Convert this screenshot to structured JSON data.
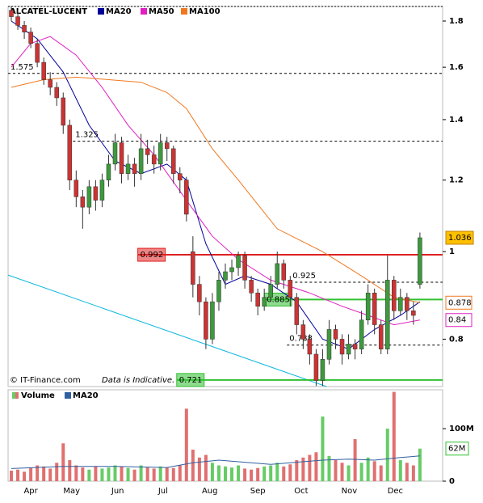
{
  "chart_data": [
    {
      "type": "candlestick",
      "title": "ALCATEL-LUCENT",
      "source": "© IT-Finance.com",
      "note": "Data is Indicative.",
      "log_scale": true,
      "xlim": [
        -0.5,
        66.5
      ],
      "xticks": [
        {
          "value": 3,
          "label": "Apr"
        },
        {
          "value": 9.3,
          "label": "May"
        },
        {
          "value": 16.4,
          "label": "Jun"
        },
        {
          "value": 23.4,
          "label": "Jul"
        },
        {
          "value": 30.6,
          "label": "Aug"
        },
        {
          "value": 38,
          "label": "Sep"
        },
        {
          "value": 44.7,
          "label": "Oct"
        },
        {
          "value": 52.1,
          "label": "Nov"
        },
        {
          "value": 59.2,
          "label": "Dec"
        }
      ],
      "ylim": [
        0.709,
        1.868
      ],
      "yticks": [
        0.8,
        1,
        1.2,
        1.4,
        1.6,
        1.8
      ],
      "up_color": "#3c9a3c",
      "down_color": "#cc3333",
      "last_price_color": "#ffc000",
      "open": [
        1.85,
        1.82,
        1.78,
        1.75,
        1.7,
        1.62,
        1.55,
        1.52,
        1.48,
        1.38,
        1.2,
        1.15,
        1.12,
        1.18,
        1.14,
        1.2,
        1.25,
        1.32,
        1.22,
        1.25,
        1.22,
        1.3,
        1.28,
        1.25,
        1.32,
        1.3,
        1.22,
        1.2,
        1.0,
        0.92,
        0.88,
        0.8,
        0.88,
        0.93,
        0.95,
        0.96,
        0.99,
        0.93,
        0.9,
        0.87,
        0.89,
        0.92,
        0.97,
        0.93,
        0.89,
        0.83,
        0.8,
        0.77,
        0.72,
        0.76,
        0.82,
        0.8,
        0.77,
        0.79,
        0.78,
        0.84,
        0.9,
        0.83,
        0.78,
        0.93,
        0.86,
        0.89,
        0.86,
        0.92
      ],
      "high": [
        1.87,
        1.85,
        1.8,
        1.77,
        1.72,
        1.64,
        1.58,
        1.54,
        1.5,
        1.4,
        1.23,
        1.17,
        1.2,
        1.2,
        1.22,
        1.28,
        1.35,
        1.34,
        1.28,
        1.27,
        1.35,
        1.33,
        1.31,
        1.35,
        1.34,
        1.31,
        1.24,
        1.21,
        1.04,
        0.94,
        0.89,
        0.9,
        0.95,
        0.97,
        0.98,
        1.0,
        1.0,
        0.94,
        0.91,
        0.91,
        0.94,
        1.0,
        0.98,
        0.94,
        0.9,
        0.84,
        0.81,
        0.78,
        0.78,
        0.84,
        0.83,
        0.81,
        0.81,
        0.8,
        0.86,
        0.92,
        0.91,
        0.84,
        0.99,
        0.94,
        0.91,
        0.9,
        0.88,
        1.05
      ],
      "low": [
        1.8,
        1.76,
        1.72,
        1.68,
        1.6,
        1.53,
        1.49,
        1.45,
        1.35,
        1.17,
        1.12,
        1.06,
        1.1,
        1.11,
        1.12,
        1.18,
        1.23,
        1.19,
        1.2,
        1.18,
        1.2,
        1.25,
        1.22,
        1.23,
        1.26,
        1.19,
        1.16,
        1.08,
        0.89,
        0.85,
        0.78,
        0.79,
        0.86,
        0.91,
        0.93,
        0.94,
        0.91,
        0.88,
        0.85,
        0.86,
        0.88,
        0.91,
        0.91,
        0.87,
        0.81,
        0.78,
        0.75,
        0.71,
        0.71,
        0.75,
        0.78,
        0.75,
        0.76,
        0.76,
        0.77,
        0.83,
        0.81,
        0.77,
        0.77,
        0.84,
        0.85,
        0.84,
        0.83,
        0.91
      ],
      "close": [
        1.82,
        1.78,
        1.75,
        1.7,
        1.62,
        1.55,
        1.52,
        1.48,
        1.38,
        1.2,
        1.15,
        1.12,
        1.18,
        1.14,
        1.2,
        1.25,
        1.32,
        1.22,
        1.25,
        1.22,
        1.3,
        1.28,
        1.25,
        1.32,
        1.3,
        1.22,
        1.2,
        1.1,
        0.92,
        0.88,
        0.8,
        0.88,
        0.93,
        0.95,
        0.96,
        0.99,
        0.93,
        0.9,
        0.87,
        0.89,
        0.92,
        0.97,
        0.93,
        0.89,
        0.83,
        0.8,
        0.77,
        0.72,
        0.76,
        0.82,
        0.8,
        0.77,
        0.79,
        0.78,
        0.84,
        0.9,
        0.83,
        0.78,
        0.93,
        0.86,
        0.89,
        0.86,
        0.85,
        1.036
      ],
      "series": [
        {
          "name": "MA20",
          "color": "#000099",
          "tag": false,
          "x": [
            0,
            4,
            8,
            12,
            16,
            20,
            24,
            27,
            30,
            33,
            36,
            40,
            44,
            48,
            52,
            56,
            60,
            63
          ],
          "values": [
            1.8,
            1.72,
            1.58,
            1.38,
            1.26,
            1.22,
            1.25,
            1.2,
            1.02,
            0.92,
            0.94,
            0.92,
            0.88,
            0.8,
            0.78,
            0.82,
            0.85,
            0.88
          ]
        },
        {
          "name": "MA50",
          "color": "#e020c0",
          "tag": true,
          "x": [
            0,
            3,
            6,
            10,
            14,
            18,
            22,
            27,
            31,
            35,
            40,
            46,
            51,
            55,
            59,
            63
          ],
          "values": [
            1.6,
            1.7,
            1.73,
            1.65,
            1.52,
            1.38,
            1.28,
            1.14,
            1.04,
            0.98,
            0.93,
            0.9,
            0.87,
            0.85,
            0.83,
            0.84
          ]
        },
        {
          "name": "MA100",
          "color": "#f07820",
          "tag": true,
          "x": [
            0,
            5,
            10,
            15,
            20,
            24,
            27,
            31,
            35,
            41,
            48,
            54,
            59,
            63
          ],
          "values": [
            1.52,
            1.55,
            1.56,
            1.55,
            1.54,
            1.5,
            1.44,
            1.3,
            1.2,
            1.06,
            1.0,
            0.94,
            0.89,
            0.878
          ]
        }
      ],
      "levels": [
        {
          "value": 1.575,
          "style": "dashed",
          "color": "#000000",
          "from": -0.5
        },
        {
          "value": 1.325,
          "style": "dashed",
          "color": "#000000",
          "from": 9.5
        },
        {
          "value": 0.992,
          "style": "box",
          "color": "#e02020",
          "from": 19.5
        },
        {
          "value": 0.925,
          "style": "dashed",
          "color": "#000000",
          "from": 43
        },
        {
          "value": 0.885,
          "style": "box",
          "color": "#30c030",
          "from": 39
        },
        {
          "value": 0.788,
          "style": "dashed",
          "color": "#000000",
          "from": 42.5
        },
        {
          "value": 0.721,
          "style": "box",
          "color": "#30c030",
          "from": 25.5
        }
      ],
      "trendline": {
        "color": "#10b8e0",
        "x": [
          -0.5,
          48.6
        ],
        "values": [
          0.942,
          0.709
        ]
      }
    },
    {
      "type": "volume",
      "ylim": [
        0,
        174000000
      ],
      "yticks": [
        {
          "value": 100000000,
          "label": "100M"
        },
        0
      ],
      "series": [
        {
          "name": "Volume",
          "values": [
            20000000,
            22000000,
            18000000,
            25000000,
            30000000,
            28000000,
            24000000,
            35000000,
            72000000,
            40000000,
            30000000,
            26000000,
            22000000,
            28000000,
            24000000,
            26000000,
            30000000,
            28000000,
            25000000,
            22000000,
            30000000,
            26000000,
            24000000,
            28000000,
            26000000,
            25000000,
            30000000,
            138000000,
            60000000,
            45000000,
            50000000,
            35000000,
            30000000,
            28000000,
            26000000,
            30000000,
            24000000,
            22000000,
            25000000,
            28000000,
            30000000,
            35000000,
            28000000,
            32000000,
            40000000,
            45000000,
            50000000,
            55000000,
            123000000,
            48000000,
            40000000,
            35000000,
            30000000,
            80000000,
            35000000,
            45000000,
            38000000,
            30000000,
            100000000,
            170000000,
            40000000,
            35000000,
            30000000,
            62000000
          ],
          "value_labels": [
            null,
            null,
            null,
            null,
            null,
            null,
            null,
            null,
            null,
            null,
            null,
            null,
            null,
            null,
            null,
            null,
            null,
            null,
            null,
            null,
            null,
            null,
            null,
            null,
            null,
            null,
            null,
            null,
            null,
            null,
            null,
            null,
            null,
            null,
            null,
            null,
            null,
            null,
            null,
            null,
            null,
            null,
            null,
            null,
            null,
            null,
            null,
            null,
            null,
            null,
            null,
            null,
            null,
            null,
            null,
            null,
            null,
            null,
            null,
            null,
            null,
            null,
            null,
            "62M"
          ]
        },
        {
          "name": "MA20",
          "color": "#3060a0",
          "x": [
            0,
            8,
            16,
            24,
            28,
            32,
            40,
            48,
            52,
            56,
            60,
            63
          ],
          "values": [
            24000000,
            28000000,
            28000000,
            26000000,
            35000000,
            40000000,
            32000000,
            40000000,
            42000000,
            40000000,
            45000000,
            48000000
          ]
        }
      ]
    }
  ]
}
